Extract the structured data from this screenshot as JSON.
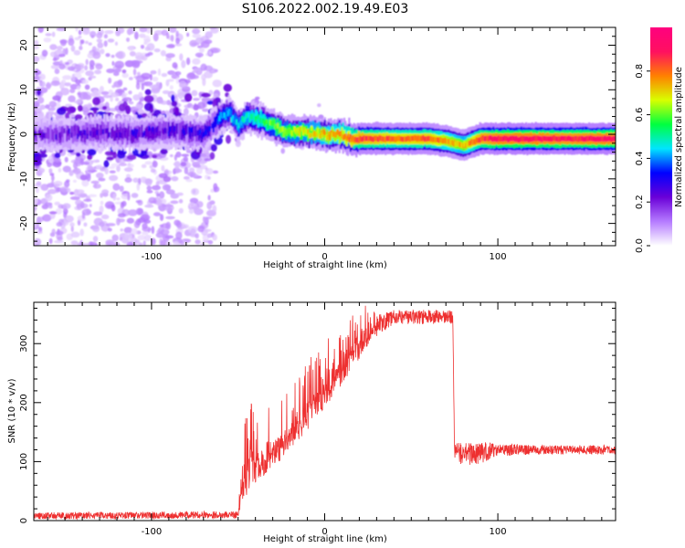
{
  "title": "S106.2022.002.19.49.E03",
  "chart_data": [
    {
      "type": "heatmap",
      "xlabel": "Height of straight line (km)",
      "ylabel": "Frequency (Hz)",
      "xlim": [
        -168,
        168
      ],
      "ylim": [
        -25,
        24
      ],
      "x_ticks": [
        -100,
        0,
        100
      ],
      "y_ticks": [
        -20,
        -10,
        0,
        10,
        20
      ],
      "x_tick_labels": [
        "-100",
        "0",
        "100"
      ],
      "y_tick_labels": [
        "-20",
        "-10",
        "0",
        "10",
        "20"
      ],
      "colorbar": {
        "label": "Normalized spectral amplitude",
        "range": [
          0,
          1
        ],
        "ticks": [
          0.0,
          0.2,
          0.4,
          0.6,
          0.8
        ],
        "tick_labels": [
          "0.0",
          "0.2",
          "0.4",
          "0.6",
          "0.8"
        ],
        "colormap": [
          "#ffffff",
          "#b57bff",
          "#6a00d8",
          "#0000ff",
          "#00e5ff",
          "#00ff40",
          "#d8ff00",
          "#ff8000",
          "#ff1060",
          "#ff007f"
        ]
      },
      "ridge": {
        "x": [
          -168,
          -150,
          -130,
          -110,
          -90,
          -70,
          -60,
          -55,
          -50,
          -45,
          -40,
          -35,
          -30,
          -25,
          -20,
          -10,
          0,
          10,
          15,
          20,
          40,
          60,
          70,
          80,
          90,
          100,
          120,
          140,
          160,
          168
        ],
        "y": [
          0,
          0,
          0.5,
          0,
          1,
          0,
          4,
          5,
          2,
          4,
          3.5,
          3,
          2,
          1,
          0.5,
          0.5,
          0,
          0,
          -1,
          -1,
          -1,
          -1,
          -1.5,
          -2.5,
          -1,
          -1,
          -1,
          -1,
          -1,
          -1
        ],
        "amplitude": [
          0.2,
          0.22,
          0.25,
          0.25,
          0.27,
          0.3,
          0.4,
          0.42,
          0.45,
          0.48,
          0.52,
          0.55,
          0.6,
          0.62,
          0.65,
          0.68,
          0.72,
          0.76,
          0.8,
          0.85,
          0.8,
          0.82,
          0.75,
          0.7,
          0.85,
          0.9,
          0.9,
          0.88,
          0.9,
          0.9
        ]
      }
    },
    {
      "type": "line",
      "xlabel": "Height of straight line (km)",
      "ylabel": "SNR (10 * v/v)",
      "xlim": [
        -168,
        168
      ],
      "ylim": [
        0,
        370
      ],
      "x_ticks": [
        -100,
        0,
        100
      ],
      "y_ticks": [
        0,
        100,
        200,
        300
      ],
      "x_tick_labels": [
        "-100",
        "0",
        "100"
      ],
      "y_tick_labels": [
        "0",
        "100",
        "200",
        "300"
      ],
      "series_color": "#ee3030",
      "envelope": {
        "x": [
          -168,
          -50,
          -47,
          -42,
          -35,
          -25,
          -10,
          0,
          10,
          20,
          30,
          40,
          50,
          60,
          74,
          75,
          80,
          90,
          100,
          120,
          168
        ],
        "y": [
          8,
          10,
          70,
          90,
          100,
          130,
          180,
          215,
          255,
          295,
          330,
          345,
          345,
          345,
          345,
          118,
          112,
          115,
          120,
          120,
          120
        ],
        "noise": [
          6,
          6,
          60,
          55,
          45,
          45,
          45,
          45,
          40,
          35,
          18,
          12,
          12,
          12,
          12,
          14,
          20,
          18,
          12,
          8,
          8
        ]
      }
    }
  ]
}
